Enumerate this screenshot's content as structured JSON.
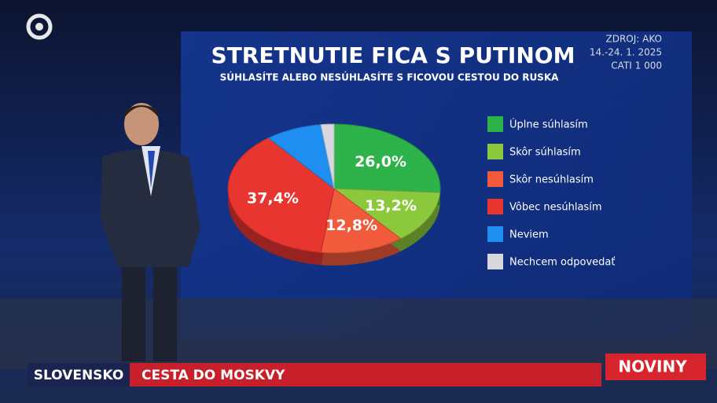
{
  "chart_data": {
    "type": "pie",
    "title": "STRETNUTIE FICA S PUTINOM",
    "subtitle": "SÚHLASÍTE ALEBO NESÚHLASÍTE S FICOVOU CESTOU DO RUSKA",
    "categories": [
      "Úplne súhlasím",
      "Skôr súhlasím",
      "Skôr nesúhlasím",
      "Vôbec nesúhlasím",
      "Neviem",
      "Nechcem odpovedať"
    ],
    "values": [
      26.0,
      13.2,
      12.8,
      37.4,
      8.6,
      2.0
    ],
    "value_labels": [
      "26,0%",
      "13,2%",
      "12,8%",
      "37,4%",
      null,
      null
    ],
    "colors": [
      "#2db34a",
      "#8cc83c",
      "#f25a3c",
      "#e8352f",
      "#1e8ff0",
      "#d8d8de"
    ]
  },
  "source": [
    "ZDROJ: AKO",
    "14.-24. 1. 2025",
    "CATI 1 000"
  ],
  "lower_third": {
    "region": "SLOVENSKO",
    "headline": "CESTA DO MOSKVY",
    "brand": "NOVINY"
  }
}
